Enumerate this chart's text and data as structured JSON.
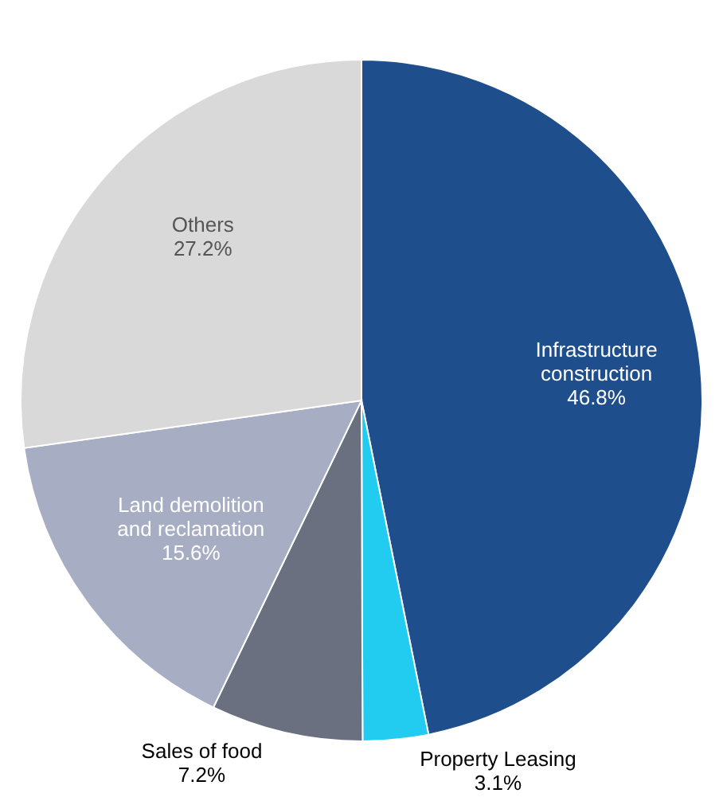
{
  "chart_data": {
    "type": "pie",
    "categories": [
      "Infrastructure construction",
      "Property Leasing",
      "Sales of food",
      "Land demolition and reclamation",
      "Others"
    ],
    "values": [
      46.8,
      3.1,
      7.2,
      15.6,
      27.2
    ],
    "colors": [
      "#1f4e8c",
      "#22ccf0",
      "#6b7080",
      "#a7aec3",
      "#d9d9d9"
    ],
    "value_labels": [
      "46.8%",
      "3.1%",
      "7.2%",
      "15.6%",
      "27.2%"
    ]
  }
}
